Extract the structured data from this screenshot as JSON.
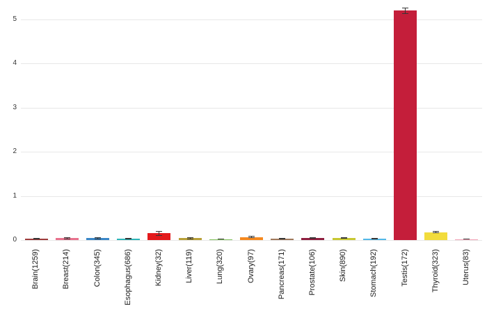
{
  "chart_data": {
    "type": "bar",
    "title": "",
    "xlabel": "",
    "ylabel": "",
    "ylim": [
      0,
      5.3
    ],
    "yticks": [
      0,
      1,
      2,
      3,
      4,
      5
    ],
    "grid": true,
    "legend": "none",
    "background": "#ffffff",
    "gridline_color": "#e7e7e7",
    "error_bar_color": "#353535",
    "categories": [
      "Brain(1259)",
      "Breast(214)",
      "Colon(345)",
      "Esophagus(686)",
      "Kidney(32)",
      "Liver(119)",
      "Lung(320)",
      "Ovary(97)",
      "Pancreas(171)",
      "Prostate(106)",
      "Skin(890)",
      "Stomach(192)",
      "Testis(172)",
      "Thyroid(323)",
      "Uterus(83)"
    ],
    "values": [
      0.03,
      0.04,
      0.04,
      0.03,
      0.15,
      0.04,
      0.02,
      0.07,
      0.03,
      0.05,
      0.05,
      0.03,
      5.2,
      0.18,
      0.02
    ],
    "errors": [
      0.01,
      0.02,
      0.02,
      0.01,
      0.05,
      0.02,
      0.01,
      0.03,
      0.01,
      0.02,
      0.02,
      0.01,
      0.07,
      0.03,
      0.01
    ],
    "bar_colors": [
      "#9e3a3a",
      "#e8718d",
      "#3a87c8",
      "#2bb5b8",
      "#e31a1c",
      "#b8a038",
      "#7fbf5a",
      "#f5891f",
      "#a0785a",
      "#8f1f3f",
      "#c8c832",
      "#52b8e8",
      "#c41e3a",
      "#f2dc3c",
      "#f2a0b4"
    ]
  }
}
